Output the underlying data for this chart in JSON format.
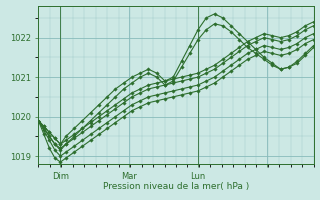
{
  "title": "",
  "xlabel": "Pression niveau de la mer( hPa )",
  "ylabel": "",
  "background_color": "#cce8e4",
  "grid_color": "#88bbbb",
  "line_color": "#2d6e2d",
  "ylim": [
    1018.8,
    1022.8
  ],
  "xlim": [
    0.0,
    1.0
  ],
  "yticks": [
    1019,
    1020,
    1021,
    1022
  ],
  "xtick_positions": [
    0.08,
    0.33,
    0.58,
    0.83
  ],
  "xtick_labels": [
    "Dim",
    "Mar",
    "Lun",
    ""
  ],
  "vline_positions": [
    0.08,
    0.58
  ],
  "lines": [
    {
      "x": [
        0.0,
        0.02,
        0.04,
        0.06,
        0.08,
        0.1,
        0.13,
        0.16,
        0.19,
        0.22,
        0.25,
        0.28,
        0.31,
        0.34,
        0.37,
        0.4,
        0.43,
        0.46,
        0.49,
        0.52,
        0.55,
        0.58,
        0.61,
        0.64,
        0.67,
        0.7,
        0.73,
        0.76,
        0.79,
        0.82,
        0.85,
        0.88,
        0.91,
        0.94,
        0.97,
        1.0
      ],
      "y": [
        1019.9,
        1019.75,
        1019.6,
        1019.45,
        1019.3,
        1019.4,
        1019.55,
        1019.7,
        1019.85,
        1020.0,
        1020.15,
        1020.3,
        1020.45,
        1020.6,
        1020.7,
        1020.8,
        1020.85,
        1020.9,
        1020.95,
        1021.0,
        1021.05,
        1021.1,
        1021.2,
        1021.3,
        1021.45,
        1021.6,
        1021.75,
        1021.9,
        1022.0,
        1022.1,
        1022.05,
        1022.0,
        1022.05,
        1022.15,
        1022.3,
        1022.4
      ]
    },
    {
      "x": [
        0.0,
        0.02,
        0.04,
        0.06,
        0.08,
        0.1,
        0.13,
        0.16,
        0.19,
        0.22,
        0.25,
        0.28,
        0.31,
        0.34,
        0.37,
        0.4,
        0.43,
        0.46,
        0.49,
        0.52,
        0.55,
        0.58,
        0.61,
        0.64,
        0.67,
        0.7,
        0.73,
        0.76,
        0.79,
        0.82,
        0.85,
        0.88,
        0.91,
        0.94,
        0.97,
        1.0
      ],
      "y": [
        1019.9,
        1019.7,
        1019.5,
        1019.3,
        1019.2,
        1019.3,
        1019.45,
        1019.6,
        1019.75,
        1019.9,
        1020.05,
        1020.2,
        1020.35,
        1020.5,
        1020.6,
        1020.7,
        1020.75,
        1020.8,
        1020.85,
        1020.9,
        1020.95,
        1021.0,
        1021.1,
        1021.2,
        1021.35,
        1021.5,
        1021.65,
        1021.8,
        1021.9,
        1022.0,
        1021.95,
        1021.9,
        1021.95,
        1022.05,
        1022.2,
        1022.3
      ]
    },
    {
      "x": [
        0.0,
        0.02,
        0.04,
        0.06,
        0.08,
        0.1,
        0.13,
        0.16,
        0.19,
        0.22,
        0.25,
        0.28,
        0.31,
        0.34,
        0.37,
        0.4,
        0.43,
        0.46,
        0.49,
        0.52,
        0.55,
        0.58,
        0.61,
        0.64,
        0.67,
        0.7,
        0.73,
        0.76,
        0.79,
        0.82,
        0.85,
        0.88,
        0.91,
        0.94,
        0.97,
        1.0
      ],
      "y": [
        1019.9,
        1019.65,
        1019.4,
        1019.15,
        1019.0,
        1019.1,
        1019.25,
        1019.4,
        1019.55,
        1019.7,
        1019.85,
        1020.0,
        1020.15,
        1020.3,
        1020.4,
        1020.5,
        1020.55,
        1020.6,
        1020.65,
        1020.7,
        1020.75,
        1020.8,
        1020.9,
        1021.0,
        1021.15,
        1021.3,
        1021.45,
        1021.6,
        1021.7,
        1021.8,
        1021.75,
        1021.7,
        1021.75,
        1021.85,
        1022.0,
        1022.1
      ]
    },
    {
      "x": [
        0.0,
        0.02,
        0.04,
        0.06,
        0.08,
        0.1,
        0.13,
        0.16,
        0.19,
        0.22,
        0.25,
        0.28,
        0.31,
        0.34,
        0.37,
        0.4,
        0.43,
        0.46,
        0.49,
        0.52,
        0.55,
        0.58,
        0.61,
        0.64,
        0.67,
        0.7,
        0.73,
        0.76,
        0.79,
        0.82,
        0.85,
        0.88,
        0.91,
        0.94,
        0.97,
        1.0
      ],
      "y": [
        1019.9,
        1019.55,
        1019.2,
        1018.95,
        1018.85,
        1018.95,
        1019.1,
        1019.25,
        1019.4,
        1019.55,
        1019.7,
        1019.85,
        1020.0,
        1020.15,
        1020.25,
        1020.35,
        1020.4,
        1020.45,
        1020.5,
        1020.55,
        1020.6,
        1020.65,
        1020.75,
        1020.85,
        1021.0,
        1021.15,
        1021.3,
        1021.45,
        1021.55,
        1021.65,
        1021.6,
        1021.55,
        1021.6,
        1021.7,
        1021.85,
        1021.95
      ]
    },
    {
      "x": [
        0.0,
        0.02,
        0.04,
        0.06,
        0.08,
        0.1,
        0.13,
        0.16,
        0.19,
        0.22,
        0.25,
        0.28,
        0.31,
        0.34,
        0.37,
        0.4,
        0.43,
        0.46,
        0.49,
        0.52,
        0.55,
        0.58,
        0.61,
        0.64,
        0.67,
        0.7,
        0.73,
        0.76,
        0.79,
        0.82,
        0.85,
        0.88,
        0.91,
        0.94,
        0.97,
        1.0
      ],
      "y": [
        1019.9,
        1019.75,
        1019.6,
        1019.45,
        1019.3,
        1019.5,
        1019.7,
        1019.9,
        1020.1,
        1020.3,
        1020.5,
        1020.7,
        1020.85,
        1021.0,
        1021.1,
        1021.2,
        1021.1,
        1020.9,
        1021.0,
        1021.4,
        1021.8,
        1022.2,
        1022.5,
        1022.6,
        1022.5,
        1022.3,
        1022.1,
        1021.9,
        1021.7,
        1021.5,
        1021.35,
        1021.2,
        1021.25,
        1021.4,
        1021.6,
        1021.8
      ]
    },
    {
      "x": [
        0.0,
        0.02,
        0.04,
        0.06,
        0.08,
        0.1,
        0.13,
        0.16,
        0.19,
        0.22,
        0.25,
        0.28,
        0.31,
        0.34,
        0.37,
        0.4,
        0.43,
        0.46,
        0.49,
        0.52,
        0.55,
        0.58,
        0.61,
        0.64,
        0.67,
        0.7,
        0.73,
        0.76,
        0.79,
        0.82,
        0.85,
        0.88,
        0.91,
        0.94,
        0.97,
        1.0
      ],
      "y": [
        1019.9,
        1019.7,
        1019.5,
        1019.3,
        1019.15,
        1019.3,
        1019.5,
        1019.7,
        1019.9,
        1020.1,
        1020.3,
        1020.5,
        1020.7,
        1020.85,
        1021.0,
        1021.1,
        1021.0,
        1020.8,
        1020.9,
        1021.25,
        1021.6,
        1021.95,
        1022.2,
        1022.35,
        1022.3,
        1022.15,
        1021.95,
        1021.75,
        1021.6,
        1021.45,
        1021.3,
        1021.2,
        1021.25,
        1021.35,
        1021.55,
        1021.75
      ]
    }
  ]
}
